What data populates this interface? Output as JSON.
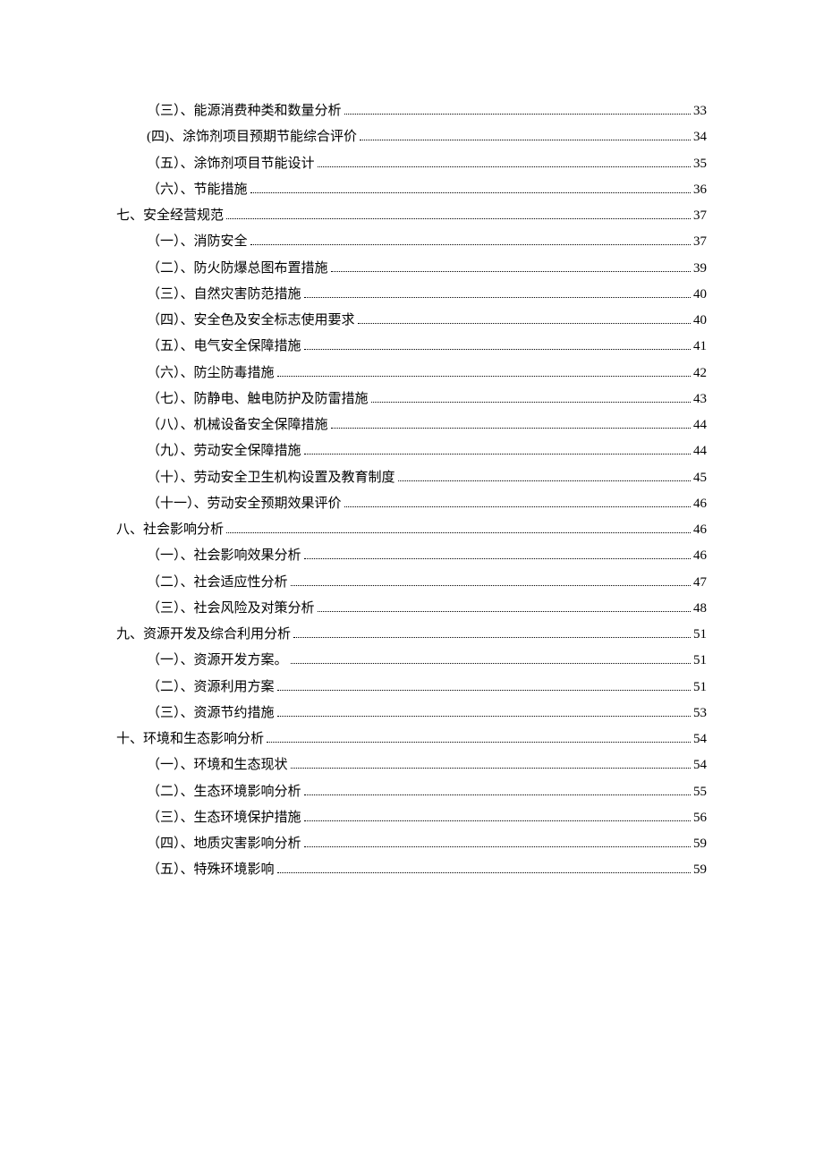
{
  "toc": [
    {
      "indent": 2,
      "label": "（三）、能源消费种类和数量分析",
      "page": "33"
    },
    {
      "indent": 2,
      "label": "(四)、涂饰剂项目预期节能综合评价",
      "page": "34"
    },
    {
      "indent": 2,
      "label": "（五）、涂饰剂项目节能设计",
      "page": "35"
    },
    {
      "indent": 2,
      "label": "（六）、节能措施",
      "page": "36"
    },
    {
      "indent": 1,
      "label": "七、安全经营规范",
      "page": "37"
    },
    {
      "indent": 2,
      "label": "（一）、消防安全",
      "page": "37"
    },
    {
      "indent": 2,
      "label": "（二）、防火防爆总图布置措施",
      "page": "39"
    },
    {
      "indent": 2,
      "label": "（三）、自然灾害防范措施",
      "page": "40"
    },
    {
      "indent": 2,
      "label": "（四）、安全色及安全标志使用要求",
      "page": "40"
    },
    {
      "indent": 2,
      "label": "（五）、电气安全保障措施",
      "page": "41"
    },
    {
      "indent": 2,
      "label": "（六）、防尘防毒措施",
      "page": "42"
    },
    {
      "indent": 2,
      "label": "（七）、防静电、触电防护及防雷措施",
      "page": "43"
    },
    {
      "indent": 2,
      "label": "（八）、机械设备安全保障措施",
      "page": "44"
    },
    {
      "indent": 2,
      "label": "（九）、劳动安全保障措施",
      "page": "44"
    },
    {
      "indent": 2,
      "label": "（十）、劳动安全卫生机构设置及教育制度",
      "page": "45"
    },
    {
      "indent": 2,
      "label": "（十一）、劳动安全预期效果评价",
      "page": "46"
    },
    {
      "indent": 1,
      "label": "八、社会影响分析",
      "page": "46"
    },
    {
      "indent": 2,
      "label": "（一）、社会影响效果分析",
      "page": "46"
    },
    {
      "indent": 2,
      "label": "（二）、社会适应性分析",
      "page": "47"
    },
    {
      "indent": 2,
      "label": "（三）、社会风险及对策分析",
      "page": "48"
    },
    {
      "indent": 1,
      "label": "九、资源开发及综合利用分析",
      "page": "51"
    },
    {
      "indent": 2,
      "label": "（一）、资源开发方案。",
      "page": "51"
    },
    {
      "indent": 2,
      "label": "（二）、资源利用方案",
      "page": "51"
    },
    {
      "indent": 2,
      "label": "（三）、资源节约措施",
      "page": "53"
    },
    {
      "indent": 1,
      "label": "十、环境和生态影响分析",
      "page": "54"
    },
    {
      "indent": 2,
      "label": "（一）、环境和生态现状",
      "page": "54"
    },
    {
      "indent": 2,
      "label": "（二）、生态环境影响分析",
      "page": "55"
    },
    {
      "indent": 2,
      "label": "（三）、生态环境保护措施",
      "page": "56"
    },
    {
      "indent": 2,
      "label": "（四）、地质灾害影响分析",
      "page": "59"
    },
    {
      "indent": 2,
      "label": "（五）、特殊环境影响",
      "page": "59"
    }
  ]
}
